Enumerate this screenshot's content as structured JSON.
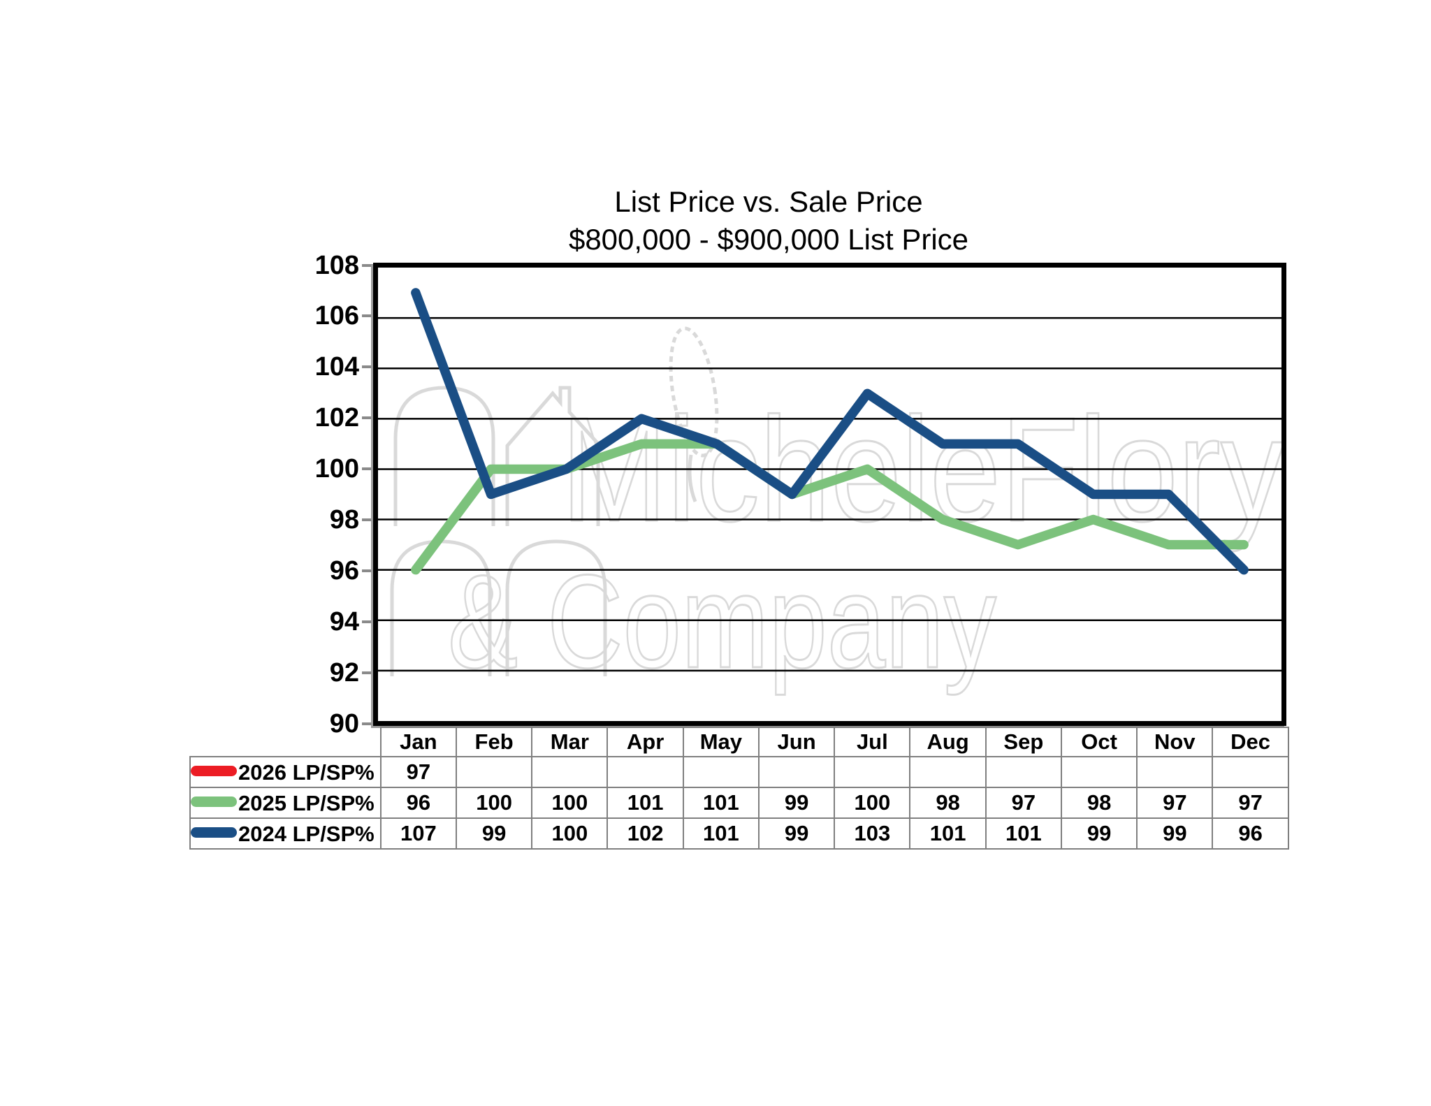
{
  "title": {
    "line1": "List Price vs. Sale Price",
    "line2": "$800,000 - $900,000 List Price"
  },
  "watermark": {
    "line1": "MicheleFlory",
    "line2": "& Company"
  },
  "y_axis": {
    "labels": [
      "108",
      "106",
      "104",
      "102",
      "100",
      "98",
      "96",
      "94",
      "92",
      "90"
    ]
  },
  "chart_data": {
    "type": "line",
    "categories": [
      "Jan",
      "Feb",
      "Mar",
      "Apr",
      "May",
      "Jun",
      "Jul",
      "Aug",
      "Sep",
      "Oct",
      "Nov",
      "Dec"
    ],
    "series": [
      {
        "name": "2026 LP/SP%",
        "color": "#EC1C24",
        "values": [
          97,
          null,
          null,
          null,
          null,
          null,
          null,
          null,
          null,
          null,
          null,
          null
        ]
      },
      {
        "name": "2025 LP/SP%",
        "color": "#7CC27C",
        "values": [
          96,
          100,
          100,
          101,
          101,
          99,
          100,
          98,
          97,
          98,
          97,
          97
        ]
      },
      {
        "name": "2024 LP/SP%",
        "color": "#1A4E85",
        "values": [
          107,
          99,
          100,
          102,
          101,
          99,
          103,
          101,
          101,
          99,
          99,
          96
        ]
      }
    ],
    "title": "List Price vs. Sale Price $800,000 - $900,000 List Price",
    "xlabel": "",
    "ylabel": "",
    "ylim": [
      90,
      108
    ],
    "ytick_step": 2,
    "grid": "horizontal",
    "legend_position": "table-left"
  },
  "table": {
    "columns": [
      "Jan",
      "Feb",
      "Mar",
      "Apr",
      "May",
      "Jun",
      "Jul",
      "Aug",
      "Sep",
      "Oct",
      "Nov",
      "Dec"
    ],
    "rows": [
      {
        "label": "2026 LP/SP%",
        "color": "#EC1C24",
        "values": [
          "97",
          "",
          "",
          "",
          "",
          "",
          "",
          "",
          "",
          "",
          "",
          ""
        ]
      },
      {
        "label": "2025 LP/SP%",
        "color": "#7CC27C",
        "values": [
          "96",
          "100",
          "100",
          "101",
          "101",
          "99",
          "100",
          "98",
          "97",
          "98",
          "97",
          "97"
        ]
      },
      {
        "label": "2024 LP/SP%",
        "color": "#1A4E85",
        "values": [
          "107",
          "99",
          "100",
          "102",
          "101",
          "99",
          "103",
          "101",
          "101",
          "99",
          "99",
          "96"
        ]
      }
    ]
  }
}
